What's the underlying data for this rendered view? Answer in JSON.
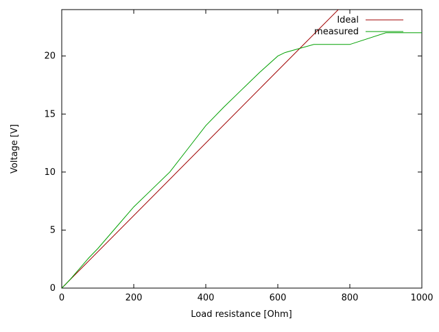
{
  "chart_data": {
    "type": "line",
    "title": "",
    "xlabel": "Load resistance [Ohm]",
    "ylabel": "Voltage [V]",
    "xlim": [
      0,
      1000
    ],
    "ylim": [
      0,
      24
    ],
    "x_ticks": [
      0,
      200,
      400,
      600,
      800,
      1000
    ],
    "y_ticks": [
      0,
      5,
      10,
      15,
      20
    ],
    "grid": false,
    "legend_position": "top-right-inside",
    "frame_color": "#000000",
    "series": [
      {
        "name": "Ideal",
        "color": "#a00000",
        "points": [
          [
            0,
            0
          ],
          [
            1000,
            31.25
          ]
        ]
      },
      {
        "name": "measured",
        "color": "#00a000",
        "points": [
          [
            0,
            0
          ],
          [
            10,
            0.3
          ],
          [
            25,
            0.8
          ],
          [
            50,
            1.7
          ],
          [
            75,
            2.6
          ],
          [
            100,
            3.4
          ],
          [
            150,
            5.2
          ],
          [
            200,
            7
          ],
          [
            250,
            8.5
          ],
          [
            300,
            10
          ],
          [
            350,
            12
          ],
          [
            400,
            14
          ],
          [
            450,
            15.6
          ],
          [
            500,
            17.1
          ],
          [
            550,
            18.6
          ],
          [
            600,
            20
          ],
          [
            620,
            20.3
          ],
          [
            700,
            21
          ],
          [
            800,
            21
          ],
          [
            900,
            22
          ],
          [
            1000,
            22
          ]
        ]
      }
    ]
  }
}
